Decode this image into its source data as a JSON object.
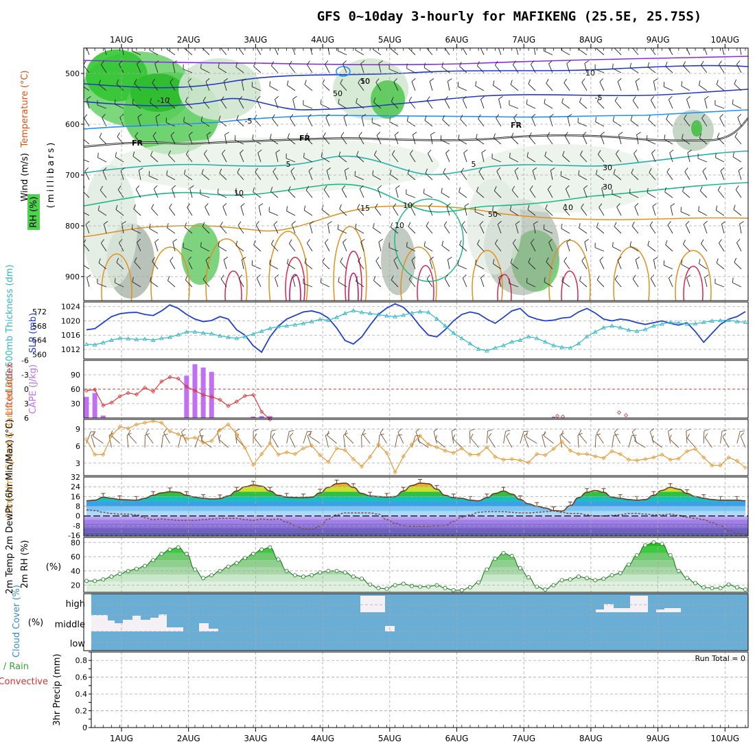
{
  "title": "GFS 0~10day 3-hourly for MAFIKENG (25.5E, 25.75S)",
  "run_total": "Run Total = 0",
  "colors": {
    "rh_green": "#4cd24c",
    "rh_gray": "#8fa08f",
    "temp_purple": "#8a2be2",
    "temp_blue": "#2236c8",
    "temp_lightblue": "#1e90ff",
    "temp_cyan": "#20b2aa",
    "temp_orange": "#e0901a",
    "temp_red": "#e0204a",
    "slp": "#2040d0",
    "thickness": "#30b8c8",
    "lifted_index": "#e03030",
    "cape": "#c070f0",
    "wind_speed": "#e89830",
    "barb": "#7a5030",
    "cloud": "#6aaed6",
    "precip_rain": "#33aa33",
    "precip_conv": "#e03030"
  },
  "chart_data": [
    {
      "id": "upper_air",
      "type": "heatmap",
      "dates": [
        "1AUG",
        "2AUG",
        "3AUG",
        "4AUG",
        "5AUG",
        "6AUG",
        "7AUG",
        "8AUG",
        "9AUG",
        "10AUG"
      ],
      "pressure_levels": [
        500,
        600,
        700,
        800,
        900
      ],
      "ylabel": "(millibars)",
      "legend_labels": [
        "Wind (m/s)",
        "Temperature (°C)",
        "RH (%)"
      ],
      "contour_labels": [
        "-10",
        "-10",
        "-5",
        "-5",
        "FR",
        "FR",
        "FR",
        "5",
        "5",
        "10",
        "10",
        "15",
        "50",
        "50",
        "10",
        "30",
        "10",
        "30",
        "50",
        "10"
      ]
    },
    {
      "id": "slp_thickness",
      "type": "line",
      "y_left_label": "1000-500mb Thickness (dm)",
      "y_right_label": "SLP (mb)",
      "y_left_ticks": [
        "572",
        "568",
        "564",
        "560"
      ],
      "y_right_ticks": [
        "1024",
        "1020",
        "1016",
        "1012"
      ],
      "series": [
        {
          "name": "SLP (mb)",
          "axis": "slp",
          "ylim": [
            1009.3,
            1025.3
          ],
          "values": [
            1017.5,
            1017.8,
            1019.5,
            1021.2,
            1022,
            1022.3,
            1022.4,
            1021.8,
            1021.5,
            1022.8,
            1024.5,
            1023.5,
            1021.8,
            1020.5,
            1019.8,
            1020.1,
            1021.2,
            1020.5,
            1017.5,
            1016,
            1013,
            1011.2,
            1015.5,
            1018.5,
            1020.5,
            1021.5,
            1022.5,
            1022.8,
            1022.2,
            1020.8,
            1018,
            1014.5,
            1013.5,
            1015.5,
            1018.8,
            1021.8,
            1023.6,
            1024.8,
            1023.8,
            1021.5,
            1018.5,
            1016,
            1015.5,
            1017.5,
            1020,
            1021.8,
            1022.5,
            1022,
            1020.5,
            1019.3,
            1021,
            1022.8,
            1023.5,
            1021.3,
            1020.5,
            1020,
            1020.2,
            1020.8,
            1021,
            1022.5,
            1023.5,
            1022.2,
            1020.5,
            1020,
            1020.5,
            1020.2,
            1019.5,
            1019,
            1019.5,
            1020,
            1019.3,
            1018.8,
            1019.5,
            1017,
            1014,
            1016.5,
            1019,
            1020.5,
            1021.2,
            1022.6
          ]
        },
        {
          "name": "Thickness (dm)",
          "axis": "thk",
          "ylim": [
            558.7,
            574.7
          ],
          "values": [
            562.8,
            562.7,
            563.3,
            564,
            564.5,
            564.4,
            564.2,
            564.3,
            564,
            564.5,
            564.8,
            565.5,
            566.3,
            566.3,
            566,
            565.8,
            565.2,
            564.8,
            564.5,
            565,
            565.7,
            566.5,
            567.3,
            567.8,
            568,
            568.3,
            568.7,
            569.2,
            569.8,
            569.6,
            570.4,
            571.5,
            572.3,
            571.8,
            571.5,
            571.2,
            570.8,
            570.6,
            571,
            571.6,
            572,
            571.8,
            570,
            568,
            566,
            564.5,
            563,
            561.5,
            561,
            561.8,
            562.5,
            563.5,
            564,
            565,
            564.5,
            563.5,
            562.5,
            562,
            561.8,
            563,
            565,
            566.3,
            567.5,
            568,
            567.5,
            566.8,
            566.5,
            567,
            568,
            568.5,
            569,
            568.8,
            568.5,
            568.6,
            569,
            569.4,
            569.5,
            569.6,
            569.2,
            569
          ]
        }
      ]
    },
    {
      "id": "stability",
      "type": "bar",
      "y_left_label": "Lifted Index",
      "y_right_label": "CAPE (J/kg)",
      "y_left_ticks": [
        "-6",
        "-3",
        "0",
        "3",
        "6"
      ],
      "y_right_ticks": [
        "90",
        "60",
        "30"
      ],
      "li_ylim": [
        6,
        -6
      ],
      "cape_ylim": [
        0,
        120
      ],
      "lifted_index": [
        0.3,
        0.1,
        3.4,
        2.8,
        1.5,
        0.8,
        1.1,
        -0.3,
        0.5,
        -1.6,
        -2.5,
        -2.2,
        -0.5,
        0.3,
        1.2,
        1.6,
        2.2,
        3.5,
        2.6,
        1.4,
        1.2,
        4.7,
        6.3,
        null,
        null,
        null,
        null,
        null,
        null,
        null,
        null,
        null,
        null,
        null,
        null,
        null,
        null,
        null,
        null,
        null,
        null,
        null,
        null,
        null,
        null,
        null,
        null,
        null,
        null,
        null,
        null,
        null,
        null,
        null,
        null,
        null,
        null,
        null,
        null,
        null,
        null,
        null,
        null,
        null,
        null,
        null,
        null,
        null,
        null,
        null,
        null,
        null,
        null,
        null,
        null,
        null,
        null,
        null,
        null,
        null
      ],
      "cape": [
        44,
        52,
        5,
        0,
        0,
        0,
        0,
        0,
        0,
        0,
        0,
        0,
        0,
        0,
        0,
        0,
        0,
        0,
        0,
        0,
        0,
        3,
        4,
        0,
        0,
        0,
        0,
        0,
        0,
        0,
        0,
        0,
        0,
        0,
        0,
        0,
        0,
        0,
        0,
        0,
        0,
        0,
        0,
        0,
        0,
        0,
        0,
        0,
        0,
        0,
        0,
        0,
        0,
        0,
        0,
        0,
        0,
        0,
        0,
        0,
        0,
        0,
        0,
        0,
        0,
        0,
        0,
        0,
        0,
        0,
        0,
        0,
        0,
        0,
        0,
        0,
        0,
        0,
        0,
        0
      ],
      "cape_extra": [
        {
          "i": 12,
          "v": 88
        },
        {
          "i": 13,
          "v": 112
        },
        {
          "i": 14,
          "v": 105
        },
        {
          "i": 15,
          "v": 96
        },
        {
          "i": 20,
          "v": 3
        },
        {
          "i": 21,
          "v": 4
        }
      ]
    },
    {
      "id": "wind10m",
      "type": "line",
      "y_left_label": "10m Wind Speed & Barbs (m/s)",
      "y_left_ticks": [
        "9",
        "6",
        "3"
      ],
      "ylim": [
        0.8,
        10.7
      ],
      "values": [
        7.2,
        4.5,
        4.5,
        7.8,
        9.4,
        9.1,
        9.8,
        10.1,
        10.4,
        10.1,
        8.6,
        8.1,
        7.3,
        7.5,
        6.6,
        6.9,
        8.8,
        9.8,
        8.1,
        5.7,
        2.7,
        4.6,
        6.5,
        4.5,
        4.9,
        4.6,
        5.6,
        6.1,
        4.4,
        3.2,
        5.6,
        5.3,
        3.7,
        2.4,
        4.1,
        6.3,
        4.8,
        1.4,
        4.2,
        6.3,
        7.8,
        6.3,
        5.8,
        5.2,
        4.8,
        5.6,
        4.5,
        4.5,
        5.8,
        4.1,
        3.6,
        3.7,
        3.5,
        3.1,
        4.6,
        4.4,
        5.5,
        6.8,
        5.2,
        4.6,
        4.6,
        4.2,
        3.9,
        5.1,
        4.6,
        3.6,
        3.5,
        3.7,
        4.0,
        4.5,
        3.6,
        3.8,
        5.1,
        5.5,
        4.0,
        2.6,
        2.6,
        4.0,
        3.4,
        2.2
      ]
    },
    {
      "id": "temp2m",
      "type": "area",
      "y_left_label": "2m Temp 2m DewPt (6hr Min/Max) (°C)",
      "y_left_ticks": [
        "32",
        "24",
        "16",
        "8",
        "0",
        "-8",
        "-16"
      ],
      "ylim": [
        -16.5,
        32
      ],
      "temp": [
        12.5,
        13,
        15.5,
        14.5,
        13.5,
        13.2,
        13,
        14.5,
        17,
        19,
        20,
        19.5,
        17,
        15.5,
        14.5,
        14,
        14.3,
        16.5,
        20.5,
        24,
        25.5,
        24.5,
        20.5,
        17,
        15.5,
        15.2,
        15,
        15.5,
        19,
        23.5,
        26.5,
        27,
        23.5,
        18.5,
        16.5,
        16,
        15.5,
        16,
        20.5,
        25,
        27,
        26.5,
        22,
        17,
        15,
        14.5,
        13,
        12.5,
        15,
        18.5,
        20.5,
        18,
        13.5,
        10,
        8,
        6.5,
        4.5,
        4,
        8.5,
        15,
        19.5,
        21,
        19.5,
        15.5,
        14.5,
        13.5,
        13,
        13.5,
        17,
        21,
        23.5,
        22,
        18.5,
        16,
        14.5,
        13.5,
        13,
        13,
        13,
        12.5
      ],
      "dewpt": [
        5,
        4.5,
        3,
        2,
        1.5,
        1.5,
        1,
        -1.5,
        -3,
        -2.5,
        -3,
        -3.5,
        -3.5,
        -3.5,
        -3,
        -2.5,
        -2,
        -2,
        -2,
        -3,
        -3.5,
        -2.5,
        -3,
        -2.5,
        -5,
        -8,
        -10.5,
        -11,
        -8.5,
        -2.5,
        1,
        2.5,
        2.5,
        2.5,
        2.5,
        1.5,
        -3,
        -6,
        -8,
        -8.5,
        -8.5,
        -8.5,
        -8,
        -8,
        -4.5,
        -1,
        1,
        3,
        3.5,
        3.5,
        3.5,
        3,
        2.5,
        2.5,
        3,
        3.5,
        4,
        3,
        2,
        2,
        1,
        0,
        0,
        0.5,
        1,
        2,
        2,
        1.5,
        1,
        1,
        1.5,
        0.5,
        -1,
        -2,
        -3,
        -5.5,
        -8,
        -12,
        -14,
        -15
      ]
    },
    {
      "id": "rh2m",
      "type": "area",
      "y_left_label": "2m RH (%)",
      "y_left_ticks": [
        "80",
        "60",
        "40",
        "20"
      ],
      "ylim": [
        10,
        87
      ],
      "values": [
        26,
        26,
        28,
        32,
        36,
        40,
        43,
        47,
        55,
        64,
        70,
        73,
        64,
        42,
        30,
        34,
        40,
        46,
        51,
        58,
        64,
        70,
        73,
        56,
        40,
        34,
        32,
        34,
        38,
        40,
        40,
        38,
        32,
        29,
        21,
        16,
        15,
        20,
        22,
        19,
        18,
        18,
        20,
        16,
        13,
        13,
        17,
        24,
        42,
        57,
        65,
        61,
        44,
        31,
        18,
        14,
        20,
        27,
        28,
        32,
        30,
        27,
        29,
        34,
        37,
        49,
        62,
        76,
        80,
        78,
        62,
        40,
        30,
        23,
        17,
        16,
        16,
        21,
        17,
        14
      ]
    },
    {
      "id": "cloud",
      "type": "bar",
      "y_left_label": "Cloud Cover (%)",
      "levels": [
        "high",
        "middle",
        "low"
      ]
    },
    {
      "id": "precip",
      "type": "bar",
      "y_left_label": "3hr Precip (mm)",
      "y_left_ticks": [
        "0.8",
        "0.6",
        "0.4",
        "0.2",
        "0"
      ],
      "ylim": [
        0,
        0.9
      ],
      "series_labels": [
        "Total / Rain",
        "Convective"
      ],
      "values": []
    }
  ]
}
